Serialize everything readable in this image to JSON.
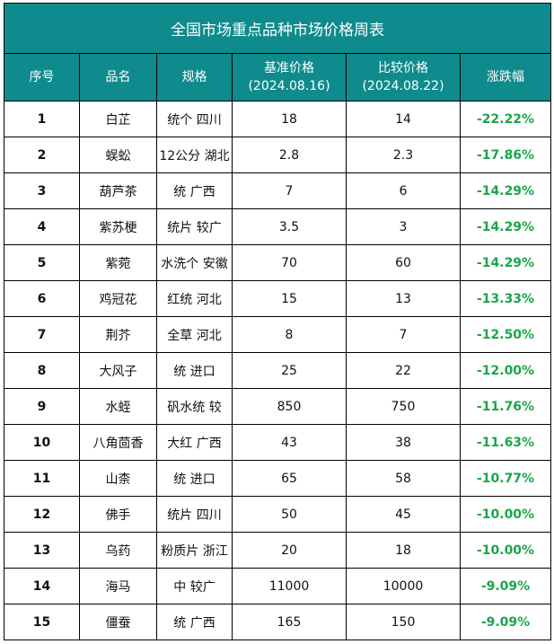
{
  "title": "全国市场重点品种市场价格周表",
  "headers": {
    "index": "序号",
    "name": "品名",
    "spec": "规格",
    "base_price": "基准价格",
    "base_date": "(2024.08.16)",
    "compare_price": "比较价格",
    "compare_date": "(2024.08.22)",
    "change": "涨跌幅"
  },
  "rows": [
    {
      "index": "1",
      "name": "白芷",
      "spec": "统个 四川",
      "base": "18",
      "compare": "14",
      "change": "-22.22%"
    },
    {
      "index": "2",
      "name": "蜈蚣",
      "spec": "12公分 湖北",
      "base": "2.8",
      "compare": "2.3",
      "change": "-17.86%"
    },
    {
      "index": "3",
      "name": "葫芦茶",
      "spec": "统 广西",
      "base": "7",
      "compare": "6",
      "change": "-14.29%"
    },
    {
      "index": "4",
      "name": "紫苏梗",
      "spec": "统片 较广",
      "base": "3.5",
      "compare": "3",
      "change": "-14.29%"
    },
    {
      "index": "5",
      "name": "紫菀",
      "spec": "水洗个 安徽",
      "base": "70",
      "compare": "60",
      "change": "-14.29%"
    },
    {
      "index": "6",
      "name": "鸡冠花",
      "spec": "红统 河北",
      "base": "15",
      "compare": "13",
      "change": "-13.33%"
    },
    {
      "index": "7",
      "name": "荆芥",
      "spec": "全草 河北",
      "base": "8",
      "compare": "7",
      "change": "-12.50%"
    },
    {
      "index": "8",
      "name": "大风子",
      "spec": "统 进口",
      "base": "25",
      "compare": "22",
      "change": "-12.00%"
    },
    {
      "index": "9",
      "name": "水蛭",
      "spec": "矾水统 较",
      "base": "850",
      "compare": "750",
      "change": "-11.76%"
    },
    {
      "index": "10",
      "name": "八角茴香",
      "spec": "大红 广西",
      "base": "43",
      "compare": "38",
      "change": "-11.63%"
    },
    {
      "index": "11",
      "name": "山柰",
      "spec": "统 进口",
      "base": "65",
      "compare": "58",
      "change": "-10.77%"
    },
    {
      "index": "12",
      "name": "佛手",
      "spec": "统片 四川",
      "base": "50",
      "compare": "45",
      "change": "-10.00%"
    },
    {
      "index": "13",
      "name": "乌药",
      "spec": "粉质片 浙江",
      "base": "20",
      "compare": "18",
      "change": "-10.00%"
    },
    {
      "index": "14",
      "name": "海马",
      "spec": "中 较广",
      "base": "11000",
      "compare": "10000",
      "change": "-9.09%"
    },
    {
      "index": "15",
      "name": "僵蚕",
      "spec": "统 广西",
      "base": "165",
      "compare": "150",
      "change": "-9.09%"
    }
  ],
  "colors": {
    "header_bg": "#0f8b8d",
    "header_text": "#ffffff",
    "change_text": "#1aa64a"
  }
}
